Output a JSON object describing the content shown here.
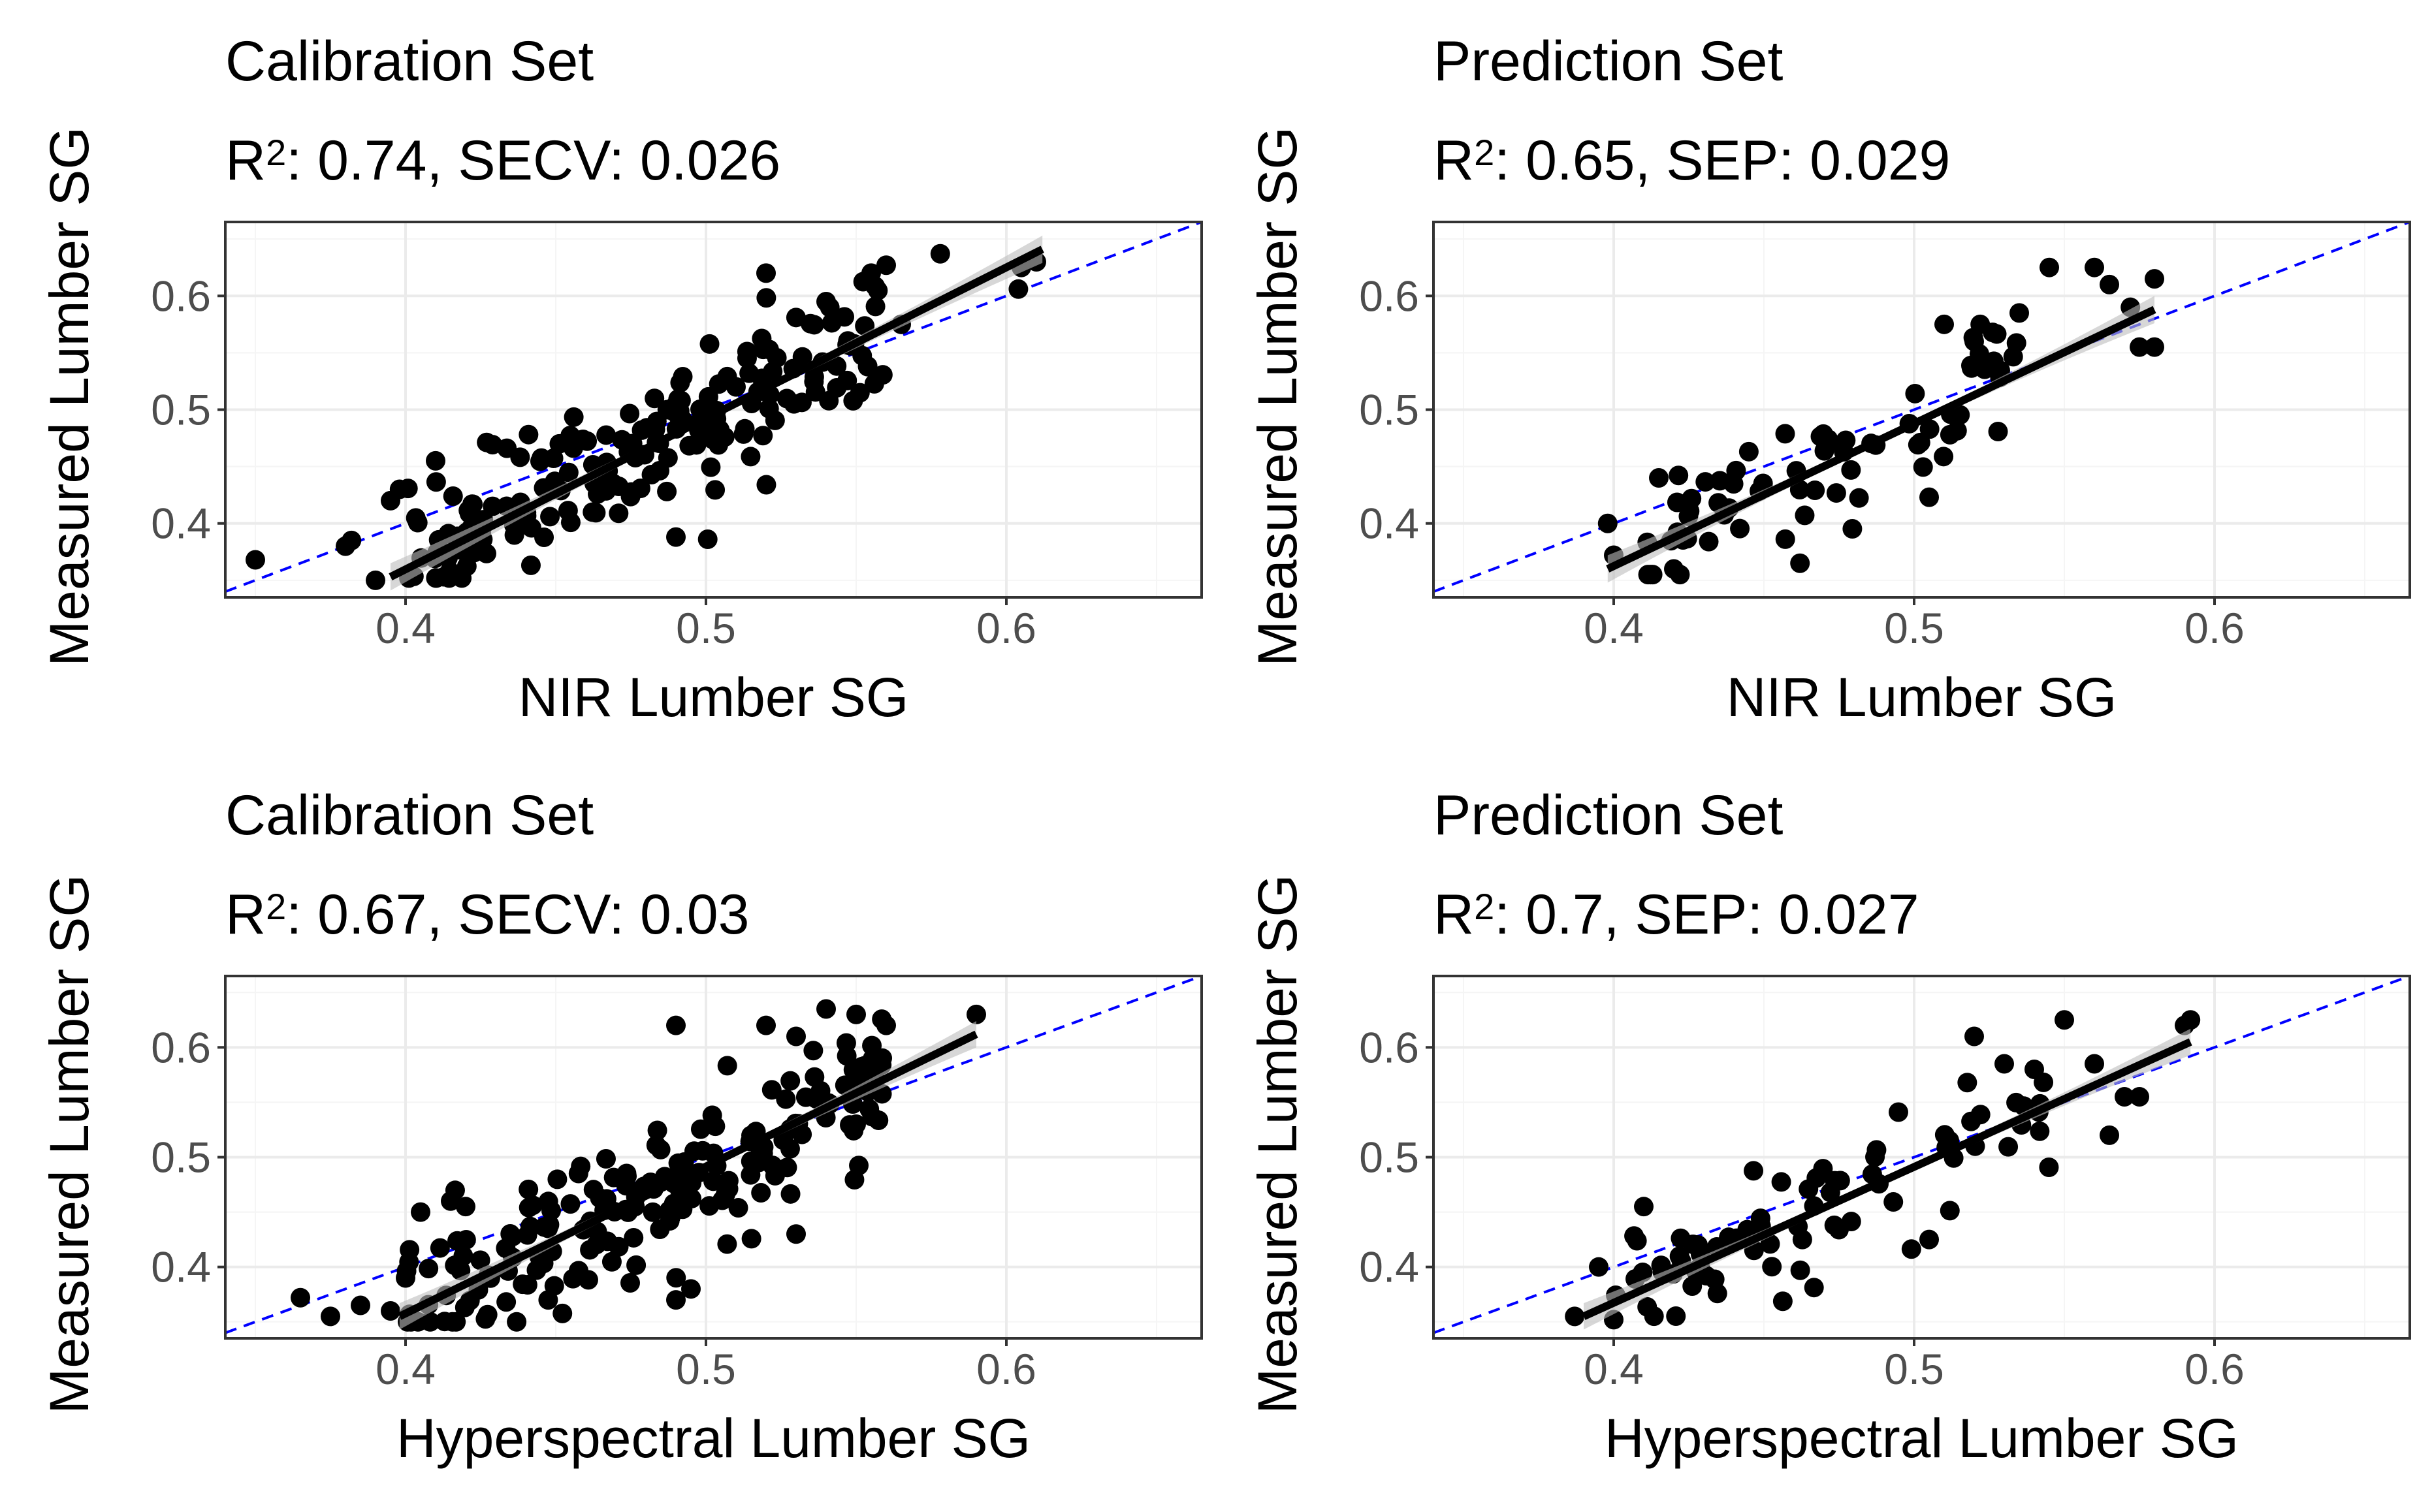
{
  "figure": {
    "background": "#ffffff",
    "panel_border_color": "#333333",
    "grid_major_color": "#ebebeb",
    "grid_minor_color": "#f5f5f5",
    "point_color": "#000000",
    "fit_line_color": "#000000",
    "confidence_band_color": "#bdbdbd",
    "identity_line_color": "#0000ff"
  },
  "chart_data": [
    {
      "type": "scatter",
      "title": "Calibration Set",
      "subtitle_stat1_value": "0.74",
      "subtitle_stat2_name": "SECV",
      "subtitle_stat2_value": "0.026",
      "r_label": "R",
      "r_sup": "2",
      "xlabel": "NIR Lumber SG",
      "ylabel": "Measured Lumber SG",
      "xlim": [
        0.34,
        0.665
      ],
      "ylim": [
        0.335,
        0.665
      ],
      "xticks": [
        "0.4",
        "0.5",
        "0.6"
      ],
      "yticks": [
        "0.4",
        "0.5",
        "0.6"
      ],
      "fit": {
        "x": [
          0.395,
          0.612
        ],
        "y": [
          0.353,
          0.641
        ]
      },
      "grid": true,
      "seed": 11,
      "n_random": 190,
      "x_range": [
        0.4,
        0.56
      ],
      "slope": 1.3,
      "intercept": -0.159,
      "noise": 0.028,
      "y_clip": [
        0.352,
        0.64
      ],
      "points": [
        [
          0.35,
          0.368
        ],
        [
          0.38,
          0.38
        ],
        [
          0.382,
          0.385
        ],
        [
          0.39,
          0.35
        ],
        [
          0.395,
          0.42
        ],
        [
          0.398,
          0.43
        ],
        [
          0.41,
          0.455
        ],
        [
          0.49,
          0.388
        ],
        [
          0.51,
          0.52
        ],
        [
          0.52,
          0.62
        ],
        [
          0.54,
          0.595
        ],
        [
          0.555,
          0.62
        ],
        [
          0.56,
          0.627
        ],
        [
          0.565,
          0.575
        ],
        [
          0.578,
          0.637
        ],
        [
          0.604,
          0.606
        ],
        [
          0.605,
          0.625
        ],
        [
          0.61,
          0.63
        ]
      ]
    },
    {
      "type": "scatter",
      "title": "Prediction Set",
      "subtitle_stat1_value": "0.65",
      "subtitle_stat2_name": "SEP",
      "subtitle_stat2_value": "0.029",
      "r_label": "R",
      "r_sup": "2",
      "xlabel": "NIR Lumber SG",
      "ylabel": "Measured Lumber SG",
      "xlim": [
        0.34,
        0.665
      ],
      "ylim": [
        0.335,
        0.665
      ],
      "xticks": [
        "0.4",
        "0.5",
        "0.6"
      ],
      "yticks": [
        "0.4",
        "0.5",
        "0.6"
      ],
      "fit": {
        "x": [
          0.398,
          0.58
        ],
        "y": [
          0.36,
          0.588
        ]
      },
      "grid": true,
      "seed": 23,
      "n_random": 70,
      "x_range": [
        0.41,
        0.54
      ],
      "slope": 1.25,
      "intercept": -0.137,
      "noise": 0.03,
      "y_clip": [
        0.355,
        0.6
      ],
      "points": [
        [
          0.398,
          0.4
        ],
        [
          0.4,
          0.372
        ],
        [
          0.415,
          0.44
        ],
        [
          0.42,
          0.36
        ],
        [
          0.462,
          0.365
        ],
        [
          0.505,
          0.423
        ],
        [
          0.51,
          0.575
        ],
        [
          0.52,
          0.56
        ],
        [
          0.522,
          0.575
        ],
        [
          0.535,
          0.585
        ],
        [
          0.545,
          0.625
        ],
        [
          0.56,
          0.625
        ],
        [
          0.565,
          0.61
        ],
        [
          0.572,
          0.59
        ],
        [
          0.575,
          0.555
        ],
        [
          0.58,
          0.555
        ],
        [
          0.58,
          0.615
        ]
      ]
    },
    {
      "type": "scatter",
      "title": "Calibration Set",
      "subtitle_stat1_value": "0.67",
      "subtitle_stat2_name": "SECV",
      "subtitle_stat2_value": "0.03",
      "r_label": "R",
      "r_sup": "2",
      "xlabel": "Hyperspectral Lumber SG",
      "ylabel": "Measured Lumber SG",
      "xlim": [
        0.34,
        0.665
      ],
      "ylim": [
        0.335,
        0.665
      ],
      "xticks": [
        "0.4",
        "0.5",
        "0.6"
      ],
      "yticks": [
        "0.4",
        "0.5",
        "0.6"
      ],
      "fit": {
        "x": [
          0.398,
          0.59
        ],
        "y": [
          0.355,
          0.612
        ]
      },
      "grid": true,
      "seed": 37,
      "n_random": 190,
      "x_range": [
        0.4,
        0.56
      ],
      "slope": 1.34,
      "intercept": -0.178,
      "noise": 0.032,
      "y_clip": [
        0.35,
        0.63
      ],
      "points": [
        [
          0.365,
          0.372
        ],
        [
          0.375,
          0.355
        ],
        [
          0.385,
          0.365
        ],
        [
          0.395,
          0.36
        ],
        [
          0.4,
          0.39
        ],
        [
          0.405,
          0.45
        ],
        [
          0.415,
          0.46
        ],
        [
          0.42,
          0.455
        ],
        [
          0.49,
          0.62
        ],
        [
          0.52,
          0.62
        ],
        [
          0.53,
          0.61
        ],
        [
          0.54,
          0.635
        ],
        [
          0.55,
          0.63
        ],
        [
          0.56,
          0.62
        ],
        [
          0.59,
          0.63
        ],
        [
          0.49,
          0.37
        ],
        [
          0.495,
          0.38
        ],
        [
          0.53,
          0.43
        ],
        [
          0.55,
          0.53
        ]
      ]
    },
    {
      "type": "scatter",
      "title": "Prediction Set",
      "subtitle_stat1_value": "0.7",
      "subtitle_stat2_name": "SEP",
      "subtitle_stat2_value": "0.027",
      "r_label": "R",
      "r_sup": "2",
      "xlabel": "Hyperspectral Lumber SG",
      "ylabel": "Measured Lumber SG",
      "xlim": [
        0.34,
        0.665
      ],
      "ylim": [
        0.335,
        0.665
      ],
      "xticks": [
        "0.4",
        "0.5",
        "0.6"
      ],
      "yticks": [
        "0.4",
        "0.5",
        "0.6"
      ],
      "fit": {
        "x": [
          0.39,
          0.592
        ],
        "y": [
          0.355,
          0.605
        ]
      },
      "grid": true,
      "seed": 53,
      "n_random": 75,
      "x_range": [
        0.4,
        0.55
      ],
      "slope": 1.24,
      "intercept": -0.128,
      "noise": 0.026,
      "y_clip": [
        0.352,
        0.6
      ],
      "points": [
        [
          0.387,
          0.355
        ],
        [
          0.395,
          0.4
        ],
        [
          0.4,
          0.352
        ],
        [
          0.41,
          0.455
        ],
        [
          0.505,
          0.425
        ],
        [
          0.52,
          0.61
        ],
        [
          0.53,
          0.585
        ],
        [
          0.54,
          0.58
        ],
        [
          0.55,
          0.625
        ],
        [
          0.56,
          0.585
        ],
        [
          0.565,
          0.52
        ],
        [
          0.57,
          0.555
        ],
        [
          0.575,
          0.555
        ],
        [
          0.59,
          0.62
        ],
        [
          0.592,
          0.625
        ]
      ]
    }
  ]
}
